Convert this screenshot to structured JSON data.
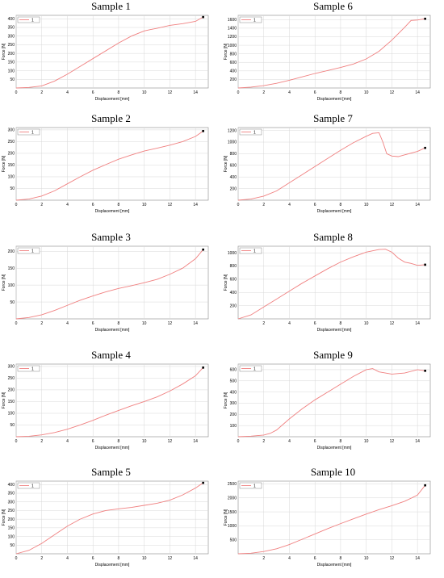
{
  "chart_data": [
    {
      "type": "line",
      "title": "Sample 1",
      "xlabel": "Displacement [mm]",
      "ylabel": "Force [N]",
      "xlim": [
        0,
        15
      ],
      "ylim": [
        0,
        420
      ],
      "xticks": [
        0,
        2,
        4,
        6,
        8,
        10,
        12,
        14
      ],
      "yticks": [
        50,
        100,
        150,
        200,
        250,
        300,
        350,
        400
      ],
      "legend": [
        {
          "name": "1",
          "color": "#f08080"
        }
      ],
      "legend_position": "top-left",
      "series": [
        {
          "name": "1",
          "color": "#f08080",
          "x": [
            0,
            1,
            2,
            3,
            4,
            5,
            6,
            7,
            8,
            9,
            10,
            10.5,
            11,
            12,
            13,
            14,
            14.6
          ],
          "y": [
            0,
            3,
            12,
            40,
            80,
            125,
            170,
            215,
            260,
            300,
            330,
            338,
            345,
            362,
            372,
            385,
            410
          ]
        }
      ],
      "end_marker": [
        14.6,
        410
      ]
    },
    {
      "type": "line",
      "title": "Sample 6",
      "xlabel": "Displacement [mm]",
      "ylabel": "Force [N]",
      "xlim": [
        0,
        15
      ],
      "ylim": [
        0,
        1700
      ],
      "xticks": [
        0,
        2,
        4,
        6,
        8,
        10,
        12,
        14
      ],
      "yticks": [
        200,
        400,
        600,
        800,
        1000,
        1200,
        1400,
        1600
      ],
      "legend": [
        {
          "name": "1",
          "color": "#f08080"
        }
      ],
      "legend_position": "top-left",
      "series": [
        {
          "name": "1",
          "color": "#f08080",
          "x": [
            0,
            1,
            2,
            3,
            4,
            5,
            6,
            7,
            8,
            9,
            10,
            11,
            12,
            13,
            13.5,
            14,
            14.6
          ],
          "y": [
            0,
            20,
            55,
            110,
            180,
            260,
            340,
            410,
            480,
            560,
            680,
            860,
            1120,
            1420,
            1580,
            1590,
            1620
          ]
        }
      ],
      "end_marker": [
        14.6,
        1620
      ]
    },
    {
      "type": "line",
      "title": "Sample 2",
      "xlabel": "Displacement [mm]",
      "ylabel": "Force [N]",
      "xlim": [
        0,
        15
      ],
      "ylim": [
        0,
        310
      ],
      "xticks": [
        0,
        2,
        4,
        6,
        8,
        10,
        12,
        14
      ],
      "yticks": [
        50,
        100,
        150,
        200,
        250,
        300
      ],
      "legend": [
        {
          "name": "1",
          "color": "#f08080"
        }
      ],
      "legend_position": "top-left",
      "series": [
        {
          "name": "1",
          "color": "#f08080",
          "x": [
            0,
            1,
            2,
            3,
            4,
            5,
            6,
            7,
            8,
            9,
            10,
            11,
            12,
            13,
            14,
            14.6
          ],
          "y": [
            0,
            5,
            18,
            40,
            70,
            100,
            128,
            152,
            175,
            193,
            210,
            222,
            235,
            250,
            272,
            295
          ]
        }
      ],
      "end_marker": [
        14.6,
        295
      ]
    },
    {
      "type": "line",
      "title": "Sample 7",
      "xlabel": "Displacement [mm]",
      "ylabel": "Force [N]",
      "xlim": [
        0,
        15
      ],
      "ylim": [
        0,
        1250
      ],
      "xticks": [
        0,
        2,
        4,
        6,
        8,
        10,
        12,
        14
      ],
      "yticks": [
        200,
        400,
        600,
        800,
        1000,
        1200
      ],
      "legend": [
        {
          "name": "1",
          "color": "#f08080"
        }
      ],
      "legend_position": "top-left",
      "series": [
        {
          "name": "1",
          "color": "#f08080",
          "x": [
            0,
            1,
            2,
            3,
            4,
            5,
            6,
            7,
            8,
            9,
            10,
            10.5,
            11,
            11.3,
            11.6,
            12,
            12.5,
            13,
            14,
            14.6
          ],
          "y": [
            0,
            20,
            70,
            160,
            300,
            440,
            580,
            720,
            860,
            990,
            1100,
            1150,
            1160,
            1000,
            800,
            760,
            750,
            780,
            840,
            900
          ]
        }
      ],
      "end_marker": [
        14.6,
        900
      ]
    },
    {
      "type": "line",
      "title": "Sample 3",
      "xlabel": "Displacement [mm]",
      "ylabel": "Force [N]",
      "xlim": [
        0,
        15
      ],
      "ylim": [
        0,
        215
      ],
      "xticks": [
        0,
        2,
        4,
        6,
        8,
        10,
        12,
        14
      ],
      "yticks": [
        50,
        100,
        150,
        200
      ],
      "legend": [
        {
          "name": "1",
          "color": "#f08080"
        }
      ],
      "legend_position": "top-left",
      "series": [
        {
          "name": "1",
          "color": "#f08080",
          "x": [
            0,
            1,
            2,
            3,
            4,
            5,
            6,
            7,
            8,
            9,
            10,
            11,
            12,
            13,
            14,
            14.6
          ],
          "y": [
            0,
            4,
            12,
            25,
            40,
            55,
            68,
            80,
            90,
            98,
            107,
            117,
            132,
            150,
            178,
            205
          ]
        }
      ],
      "end_marker": [
        14.6,
        205
      ]
    },
    {
      "type": "line",
      "title": "Sample 8",
      "xlabel": "Displacement [mm]",
      "ylabel": "Force [N]",
      "xlim": [
        0,
        15
      ],
      "ylim": [
        0,
        1100
      ],
      "xticks": [
        2,
        4,
        6,
        8,
        10,
        12,
        14
      ],
      "yticks": [
        200,
        400,
        600,
        800,
        1000
      ],
      "legend": [
        {
          "name": "1",
          "color": "#f08080"
        }
      ],
      "legend_position": "top-left",
      "series": [
        {
          "name": "1",
          "color": "#f08080",
          "x": [
            0,
            1,
            2,
            3,
            4,
            5,
            6,
            7,
            8,
            9,
            10,
            11,
            11.5,
            12,
            12.5,
            13,
            13.5,
            14,
            14.6
          ],
          "y": [
            0,
            60,
            180,
            300,
            420,
            540,
            650,
            760,
            860,
            940,
            1010,
            1050,
            1055,
            1010,
            920,
            860,
            840,
            810,
            820
          ]
        }
      ],
      "end_marker": [
        14.6,
        820
      ]
    },
    {
      "type": "line",
      "title": "Sample 4",
      "xlabel": "Displacement [mm]",
      "ylabel": "Force [N]",
      "xlim": [
        0,
        15
      ],
      "ylim": [
        0,
        310
      ],
      "xticks": [
        0,
        2,
        4,
        6,
        8,
        10,
        12,
        14
      ],
      "yticks": [
        50,
        100,
        150,
        200,
        250,
        300
      ],
      "legend": [
        {
          "name": "1",
          "color": "#f08080"
        }
      ],
      "legend_position": "top-left",
      "series": [
        {
          "name": "1",
          "color": "#f08080",
          "x": [
            0,
            1,
            2,
            3,
            4,
            5,
            6,
            7,
            8,
            9,
            10,
            11,
            12,
            13,
            14,
            14.6
          ],
          "y": [
            0,
            2,
            8,
            18,
            32,
            50,
            70,
            92,
            112,
            132,
            150,
            170,
            195,
            225,
            260,
            295
          ]
        }
      ],
      "end_marker": [
        14.6,
        295
      ]
    },
    {
      "type": "line",
      "title": "Sample 9",
      "xlabel": "Displacement [mm]",
      "ylabel": "Force [N]",
      "xlim": [
        0,
        15
      ],
      "ylim": [
        0,
        650
      ],
      "xticks": [
        0,
        2,
        4,
        6,
        8,
        10,
        12,
        14
      ],
      "yticks": [
        100,
        200,
        300,
        400,
        500,
        600
      ],
      "legend": [
        {
          "name": "1",
          "color": "#f08080"
        }
      ],
      "legend_position": "top-left",
      "series": [
        {
          "name": "1",
          "color": "#f08080",
          "x": [
            0,
            1,
            2,
            2.5,
            3,
            4,
            5,
            6,
            7,
            8,
            9,
            10,
            10.5,
            11,
            12,
            13,
            14,
            14.6
          ],
          "y": [
            0,
            5,
            15,
            30,
            60,
            160,
            250,
            330,
            400,
            470,
            540,
            600,
            610,
            580,
            560,
            570,
            600,
            590
          ]
        }
      ],
      "end_marker": [
        14.6,
        590
      ]
    },
    {
      "type": "line",
      "title": "Sample 5",
      "xlabel": "Displacement [mm]",
      "ylabel": "Force [N]",
      "xlim": [
        0,
        15
      ],
      "ylim": [
        0,
        420
      ],
      "xticks": [
        0,
        2,
        4,
        6,
        8,
        10,
        12,
        14
      ],
      "yticks": [
        50,
        100,
        150,
        200,
        250,
        300,
        350,
        400
      ],
      "legend": [
        {
          "name": "1",
          "color": "#f08080"
        }
      ],
      "legend_position": "top-left",
      "series": [
        {
          "name": "1",
          "color": "#f08080",
          "x": [
            0,
            1,
            2,
            3,
            4,
            5,
            6,
            7,
            8,
            9,
            10,
            11,
            12,
            13,
            14,
            14.6
          ],
          "y": [
            0,
            20,
            60,
            110,
            160,
            200,
            230,
            250,
            260,
            268,
            280,
            292,
            310,
            340,
            380,
            410
          ]
        }
      ],
      "end_marker": [
        14.6,
        410
      ]
    },
    {
      "type": "line",
      "title": "Sample 10",
      "xlabel": "Displacement [mm]",
      "ylabel": "Force [N]",
      "xlim": [
        0,
        15
      ],
      "ylim": [
        0,
        2600
      ],
      "xticks": [
        2,
        4,
        6,
        8,
        10,
        12,
        14
      ],
      "yticks": [
        500,
        1000,
        1500,
        2000,
        2500
      ],
      "legend": [
        {
          "name": "1",
          "color": "#f08080"
        }
      ],
      "legend_position": "top-left",
      "series": [
        {
          "name": "1",
          "color": "#f08080",
          "x": [
            0,
            1,
            2,
            3,
            4,
            5,
            6,
            7,
            8,
            9,
            10,
            11,
            12,
            13,
            14,
            14.6
          ],
          "y": [
            0,
            20,
            80,
            180,
            330,
            520,
            710,
            900,
            1080,
            1250,
            1420,
            1580,
            1720,
            1880,
            2100,
            2450
          ]
        }
      ],
      "end_marker": [
        14.6,
        2450
      ]
    }
  ]
}
